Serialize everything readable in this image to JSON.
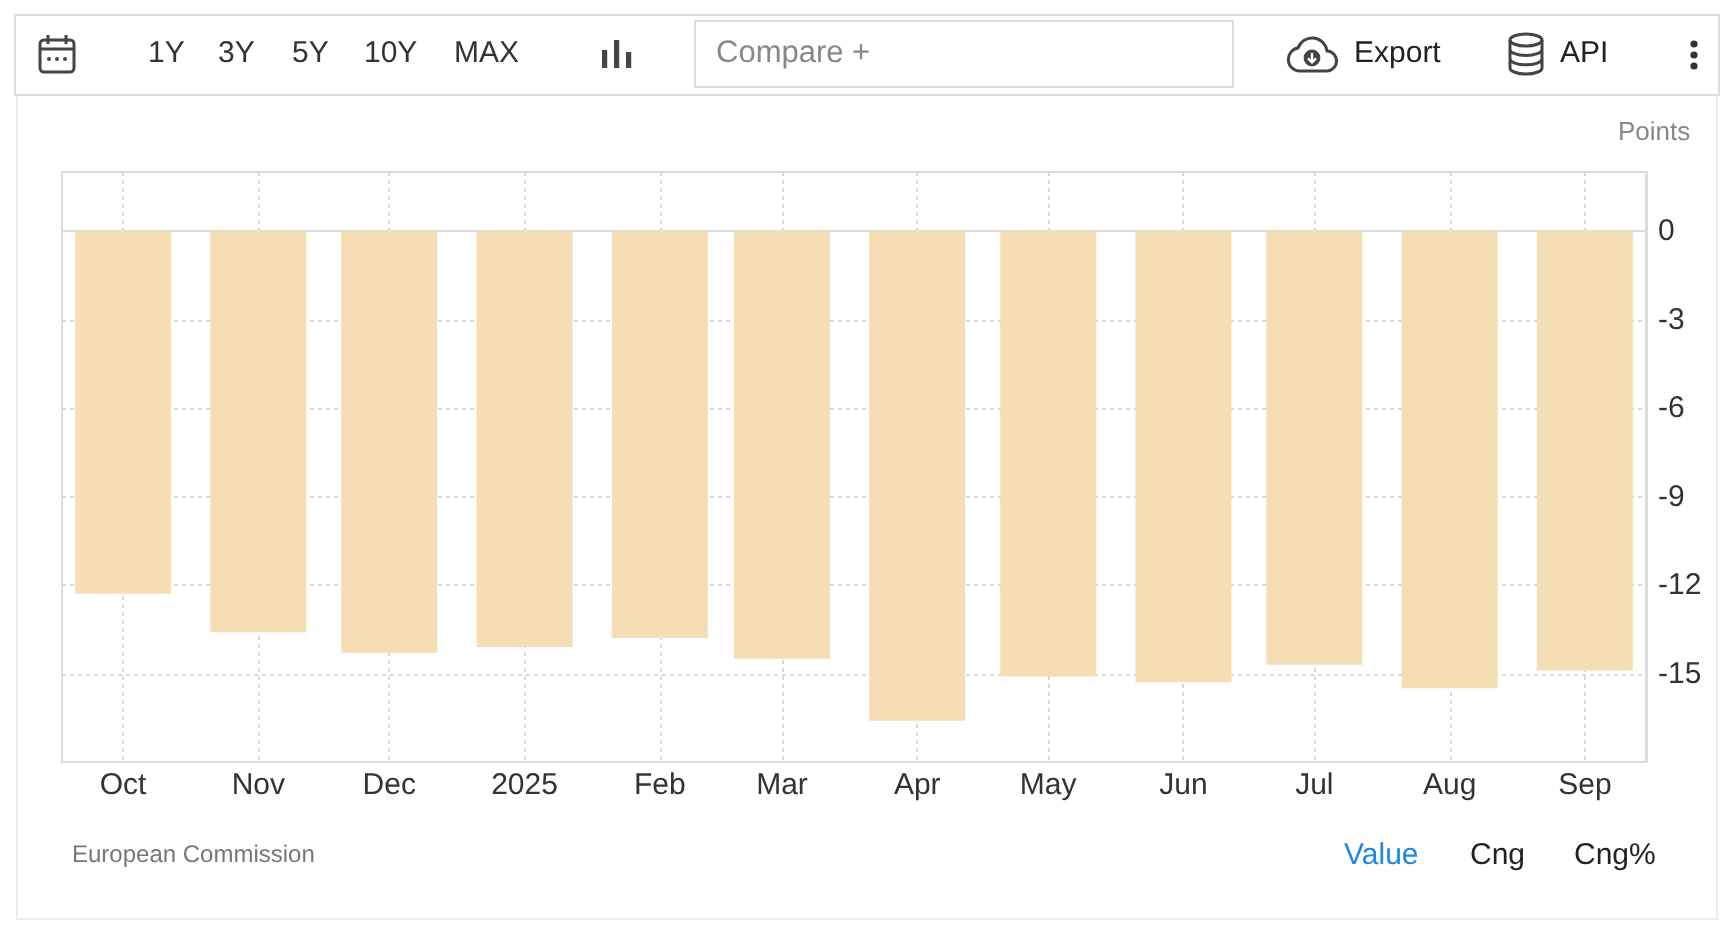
{
  "chart_data": {
    "type": "bar",
    "ylabel": "Points",
    "x": [
      "2024-10",
      "2024-11",
      "2024-12",
      "2025-01",
      "2025-02",
      "2025-03",
      "2025-04",
      "2025-05",
      "2025-06",
      "2025-07",
      "2025-08",
      "2025-09"
    ],
    "values": [
      -12.3,
      -13.6,
      -14.3,
      -14.1,
      -13.8,
      -14.5,
      -16.6,
      -15.1,
      -15.3,
      -14.7,
      -15.5,
      -14.9
    ],
    "color": "#f5deb3",
    "xlim": [
      "2024-09-17",
      "2025-09-15"
    ],
    "xticks": [
      {
        "value": "2024-10",
        "label": "Oct"
      },
      {
        "value": "2024-11",
        "label": "Nov"
      },
      {
        "value": "2024-12",
        "label": "Dec"
      },
      {
        "value": "2025-01",
        "label": "2025"
      },
      {
        "value": "2025-02",
        "label": "Feb"
      },
      {
        "value": "2025-03",
        "label": "Mar"
      },
      {
        "value": "2025-04",
        "label": "Apr"
      },
      {
        "value": "2025-05",
        "label": "May"
      },
      {
        "value": "2025-06",
        "label": "Jun"
      },
      {
        "value": "2025-07",
        "label": "Jul"
      },
      {
        "value": "2025-08",
        "label": "Aug"
      },
      {
        "value": "2025-09",
        "label": "Sep"
      }
    ],
    "ylim": [
      -18,
      2
    ],
    "yticks": [
      0,
      -3,
      -6,
      -9,
      -12,
      -15
    ],
    "grid": true,
    "annotations": [
      "European Commission",
      "1Y",
      "3Y",
      "5Y",
      "10Y",
      "MAX",
      "Compare +",
      "Export",
      "API",
      "Value",
      "Cng",
      "Cng%"
    ]
  }
}
